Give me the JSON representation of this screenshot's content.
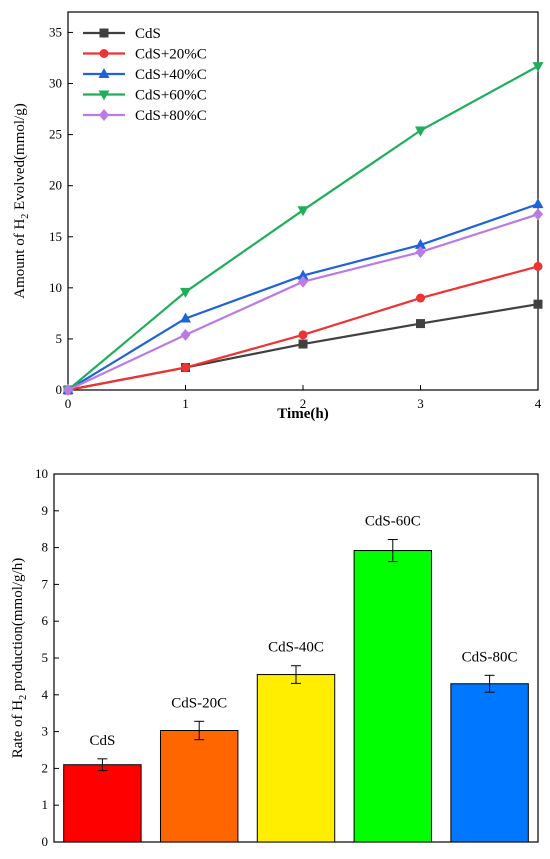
{
  "chart_data": [
    {
      "type": "line",
      "title": "",
      "xlabel": "Time(h)",
      "ylabel": [
        "Amount of H",
        "2",
        " Evolved(mmol/g)"
      ],
      "x": [
        0,
        1,
        2,
        3,
        4
      ],
      "xlim": [
        0,
        4
      ],
      "ylim": [
        0,
        37
      ],
      "xticks": [
        "0",
        "1",
        "2",
        "3",
        "4"
      ],
      "yticks": [
        "0",
        "5",
        "10",
        "15",
        "20",
        "25",
        "30",
        "35"
      ],
      "legend_position": "top-left",
      "grid": false,
      "series": [
        {
          "name": "CdS",
          "color": "#404040",
          "marker": "square",
          "values": [
            0,
            2.2,
            4.5,
            6.5,
            8.4
          ]
        },
        {
          "name": "CdS+20%C",
          "color": "#ee3333",
          "marker": "circle",
          "values": [
            0,
            2.2,
            5.4,
            9.0,
            12.1
          ]
        },
        {
          "name": "CdS+40%C",
          "color": "#1f63d6",
          "marker": "triangle-up",
          "values": [
            0,
            7.0,
            11.2,
            14.2,
            18.2
          ]
        },
        {
          "name": "CdS+60%C",
          "color": "#1fae5a",
          "marker": "triangle-down",
          "values": [
            0,
            9.6,
            17.6,
            25.4,
            31.7
          ]
        },
        {
          "name": "CdS+80%C",
          "color": "#bb7ae6",
          "marker": "diamond",
          "values": [
            0,
            5.4,
            10.6,
            13.5,
            17.2
          ]
        }
      ]
    },
    {
      "type": "bar",
      "title": "",
      "xlabel": "",
      "ylabel": [
        "Rate of H",
        "2",
        " production(mmol/g/h)"
      ],
      "ylim": [
        0,
        10
      ],
      "yticks": [
        "0",
        "1",
        "2",
        "3",
        "4",
        "5",
        "6",
        "7",
        "8",
        "9",
        "10"
      ],
      "grid": false,
      "categories": [
        "CdS",
        "CdS-20C",
        "CdS-40C",
        "CdS-60C",
        "CdS-80C"
      ],
      "values": [
        2.1,
        3.03,
        4.55,
        7.92,
        4.3
      ],
      "errors": [
        0.16,
        0.25,
        0.24,
        0.3,
        0.23
      ],
      "colors": [
        "#ff0000",
        "#ff6600",
        "#ffee00",
        "#00ff00",
        "#0077ff"
      ]
    }
  ]
}
